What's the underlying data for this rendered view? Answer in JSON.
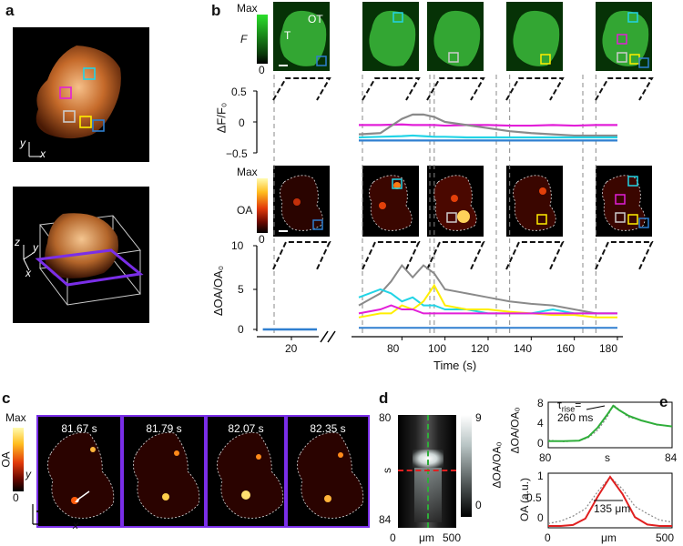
{
  "panels": {
    "a": "a",
    "b": "b",
    "c": "c",
    "d": "d",
    "e": "e"
  },
  "panel_a": {
    "axis_y": "y",
    "axis_x": "x",
    "axis3d_z": "z",
    "axis3d_y": "y",
    "axis3d_x": "x"
  },
  "panel_b": {
    "fl_colorbar_max": "Max",
    "fl_colorbar_min": "0",
    "fl_colorbar_label": "F",
    "label_T": "T",
    "label_OT": "OT",
    "oa_colorbar_max": "Max",
    "oa_colorbar_min": "0",
    "oa_colorbar_label": "OA",
    "dff_ylabel": "ΔF/F₀",
    "dff_ticks": [
      "0.5",
      "0",
      "−0.5"
    ],
    "doa_ylabel": "ΔOA/OA₀",
    "doa_ticks": [
      "10",
      "5",
      "0"
    ],
    "x_ticks": [
      "20",
      "80",
      "100",
      "120",
      "140",
      "160",
      "180"
    ],
    "xlabel": "Time (s)"
  },
  "panel_c": {
    "colorbar_max": "Max",
    "colorbar_min": "0",
    "colorbar_label": "OA",
    "axis_y": "y",
    "axis_x": "x",
    "timestamps": [
      "81.67 s",
      "81.79 s",
      "82.07 s",
      "82.35 s"
    ]
  },
  "panel_d": {
    "yticks": [
      "80",
      "84"
    ],
    "ylabel": "s",
    "xticks": [
      "0",
      "μm",
      "500"
    ],
    "colorbar_ticks": [
      "9",
      "0"
    ],
    "colorbar_label": "ΔOA/OA₀"
  },
  "panel_e": {
    "top_ylabel": "ΔOA/OA₀",
    "top_yticks": [
      "8",
      "4",
      "0"
    ],
    "top_xticks": [
      "80",
      "s",
      "84"
    ],
    "tau_label": "τ",
    "tau_sub": "rise",
    "tau_eq": "=",
    "tau_value": "260 ms",
    "bottom_ylabel": "OA (a.u.)",
    "bottom_yticks": [
      "1",
      "0.5",
      "0"
    ],
    "bottom_xticks": [
      "0",
      "μm",
      "500"
    ],
    "fwhm_value": "135 μm"
  },
  "colors": {
    "magenta": "#e21fd8",
    "gray": "#8a8a8a",
    "yellow": "#ffee00",
    "cyan": "#22d4e6",
    "blue": "#2f7fd0",
    "green": "#2fae3a",
    "red": "#e02020"
  },
  "chart_data": [
    {
      "type": "line",
      "xlabel": "Time (s)",
      "ylabel": "ΔF/F₀",
      "ylim": [
        -0.5,
        0.5
      ],
      "x": [
        60,
        70,
        80,
        85,
        90,
        95,
        100,
        110,
        120,
        130,
        140,
        150,
        160,
        170,
        180
      ],
      "series": [
        {
          "color": "magenta",
          "values": [
            -0.05,
            -0.05,
            -0.04,
            -0.05,
            -0.05,
            -0.05,
            -0.06,
            -0.05,
            -0.05,
            -0.06,
            -0.06,
            -0.05,
            -0.06,
            -0.05,
            -0.05
          ]
        },
        {
          "color": "gray",
          "values": [
            -0.2,
            -0.18,
            0.05,
            0.12,
            0.12,
            0.08,
            0.0,
            -0.05,
            -0.1,
            -0.15,
            -0.18,
            -0.2,
            -0.22,
            -0.22,
            -0.22
          ]
        },
        {
          "color": "cyan",
          "values": [
            -0.25,
            -0.24,
            -0.23,
            -0.22,
            -0.23,
            -0.24,
            -0.24,
            -0.25,
            -0.25,
            -0.25,
            -0.25,
            -0.25,
            -0.25,
            -0.25,
            -0.25
          ]
        },
        {
          "color": "blue",
          "values": [
            -0.3,
            -0.3,
            -0.3,
            -0.3,
            -0.3,
            -0.3,
            -0.3,
            -0.3,
            -0.3,
            -0.3,
            -0.3,
            -0.3,
            -0.3,
            -0.3,
            -0.3
          ]
        }
      ]
    },
    {
      "type": "line",
      "xlabel": "Time (s)",
      "ylabel": "ΔOA/OA₀",
      "ylim": [
        -1,
        11
      ],
      "x": [
        60,
        70,
        75,
        80,
        85,
        90,
        95,
        100,
        110,
        120,
        130,
        140,
        150,
        160,
        170,
        180
      ],
      "series": [
        {
          "color": "gray",
          "values": [
            3.0,
            4.5,
            6.0,
            8.0,
            6.5,
            8.0,
            7.0,
            5.0,
            4.5,
            4.0,
            3.5,
            3.2,
            3.0,
            2.5,
            2.0,
            2.0
          ]
        },
        {
          "color": "cyan",
          "values": [
            4.0,
            5.0,
            4.5,
            3.5,
            4.0,
            3.0,
            3.0,
            2.5,
            2.5,
            2.0,
            2.0,
            2.0,
            2.5,
            2.0,
            2.0,
            2.0
          ]
        },
        {
          "color": "yellow",
          "values": [
            1.5,
            2.0,
            2.0,
            3.0,
            2.5,
            3.5,
            5.5,
            3.0,
            2.5,
            2.5,
            2.2,
            2.0,
            1.8,
            1.8,
            1.5,
            1.5
          ]
        },
        {
          "color": "magenta",
          "values": [
            2.0,
            2.5,
            3.0,
            2.5,
            2.5,
            2.0,
            2.0,
            2.0,
            2.0,
            2.0,
            2.0,
            2.0,
            2.0,
            2.0,
            2.0,
            2.0
          ]
        },
        {
          "color": "blue",
          "values": [
            0.2,
            0.2,
            0.2,
            0.2,
            0.2,
            0.2,
            0.2,
            0.2,
            0.2,
            0.2,
            0.2,
            0.2,
            0.2,
            0.2,
            0.2,
            0.2
          ]
        }
      ],
      "baseline_segment": {
        "color": "blue",
        "x": [
          12,
          30
        ],
        "value": 0
      }
    },
    {
      "type": "line",
      "xlabel": "s",
      "ylabel": "ΔOA/OA₀",
      "xlim": [
        80,
        84
      ],
      "ylim": [
        0,
        9
      ],
      "x": [
        80,
        80.5,
        81,
        81.3,
        81.6,
        81.9,
        82.1,
        82.3,
        82.6,
        83,
        83.5,
        84
      ],
      "series": [
        {
          "color": "gray",
          "values": [
            1.5,
            1.2,
            1.4,
            2.0,
            3.5,
            6.0,
            8.5,
            7.5,
            6.0,
            5.5,
            4.5,
            4.2
          ]
        },
        {
          "color": "green",
          "values": [
            1.3,
            1.3,
            1.4,
            2.2,
            4.0,
            6.5,
            8.3,
            7.4,
            6.3,
            5.4,
            4.6,
            4.2
          ]
        }
      ]
    },
    {
      "type": "line",
      "xlabel": "μm",
      "ylabel": "OA (a.u.)",
      "xlim": [
        0,
        500
      ],
      "ylim": [
        0,
        1.1
      ],
      "x": [
        0,
        50,
        100,
        150,
        200,
        250,
        300,
        350,
        400,
        450,
        500
      ],
      "series": [
        {
          "color": "gray",
          "values": [
            0.05,
            0.1,
            0.2,
            0.35,
            0.7,
            1.0,
            0.75,
            0.4,
            0.25,
            0.12,
            0.08
          ]
        },
        {
          "color": "red",
          "values": [
            0.0,
            0.0,
            0.02,
            0.15,
            0.6,
            1.0,
            0.65,
            0.18,
            0.03,
            0.0,
            0.0
          ]
        }
      ]
    }
  ]
}
